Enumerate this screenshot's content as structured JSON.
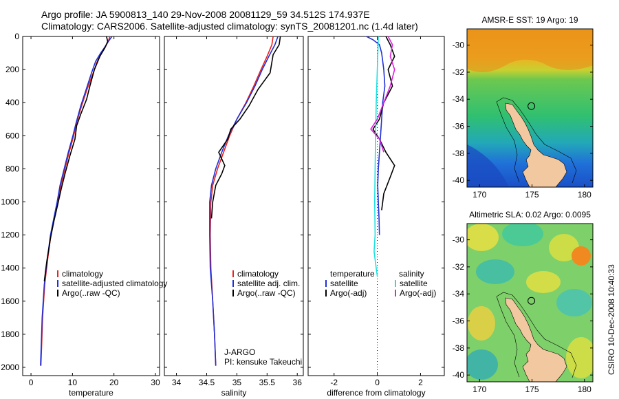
{
  "header": {
    "line1": "Argo profile: JA 5900813_140 29-Nov-2008 20081129_59 34.512S 174.937E",
    "line2": "Climatology: CARS2006. Satellite-adjusted climatology: synTS_20081201.nc (1.4d later)"
  },
  "footer": {
    "credit": "CSIRO 10-Dec-2008 10:40:33"
  },
  "colors": {
    "climatology": "#e8231d",
    "satellite": "#1f2fd8",
    "argo": "#000000",
    "sat_salinity": "#20e0e0",
    "argo_salinity": "#dd22dd"
  },
  "chart_data": [
    {
      "type": "line",
      "xlabel": "temperature",
      "ylim": [
        2050,
        0
      ],
      "xlim": [
        -2,
        31
      ],
      "xticks": [
        0,
        10,
        20,
        30
      ],
      "yticks": [
        0,
        200,
        400,
        600,
        800,
        1000,
        1200,
        1400,
        1600,
        1800,
        2000
      ],
      "legend": {
        "position": "bottom-right",
        "entries": [
          "climatology",
          "satellite-adjusted climatology",
          "Argo(..raw -QC)"
        ]
      },
      "series": [
        {
          "name": "climatology",
          "color": "#e8231d",
          "x": [
            19.0,
            18.7,
            18.0,
            17.0,
            16.0,
            15.0,
            13.5,
            12.2,
            11.0,
            10.3,
            9.2,
            8.2,
            7.2,
            6.4,
            5.6,
            4.8,
            4.0,
            3.3,
            2.8,
            2.6,
            2.4
          ],
          "y": [
            0,
            25,
            60,
            100,
            150,
            220,
            320,
            420,
            520,
            600,
            700,
            800,
            900,
            1000,
            1100,
            1200,
            1350,
            1500,
            1700,
            1850,
            1990
          ]
        },
        {
          "name": "satellite-adjusted climatology",
          "color": "#1f2fd8",
          "x": [
            19.5,
            18.8,
            17.9,
            16.8,
            15.6,
            14.6,
            13.3,
            12.0,
            10.9,
            10.1,
            9.0,
            8.0,
            7.0,
            6.3,
            5.5,
            4.7,
            3.9,
            3.2,
            2.7,
            2.5,
            2.3
          ],
          "y": [
            0,
            25,
            60,
            100,
            150,
            220,
            320,
            420,
            520,
            600,
            700,
            800,
            900,
            1000,
            1100,
            1200,
            1350,
            1500,
            1700,
            1850,
            1990
          ]
        },
        {
          "name": "Argo(..raw -QC)",
          "color": "#000000",
          "x": [
            18.2,
            18.5,
            17.8,
            16.6,
            15.3,
            14.2,
            13.4,
            12.0,
            11.0,
            10.6,
            9.4,
            8.2,
            7.3,
            6.4,
            5.5,
            4.7,
            3.8,
            3.2
          ],
          "y": [
            0,
            30,
            70,
            120,
            200,
            300,
            380,
            470,
            540,
            620,
            720,
            830,
            920,
            1020,
            1120,
            1220,
            1360,
            1480
          ]
        }
      ]
    },
    {
      "type": "line",
      "xlabel": "salinity",
      "ylim": [
        2050,
        0
      ],
      "xlim": [
        33.8,
        36.1
      ],
      "xticks": [
        34,
        34.5,
        35,
        35.5,
        36
      ],
      "legend": {
        "position": "bottom-right",
        "entries": [
          "climatology",
          "satellite adj. clim.",
          "Argo(..raw -QC)"
        ]
      },
      "annotation": [
        "J-ARGO",
        "PI: kensuke Takeuchi"
      ],
      "series": [
        {
          "name": "climatology",
          "color": "#e8231d",
          "x": [
            35.6,
            35.58,
            35.5,
            35.4,
            35.28,
            35.15,
            35.0,
            34.88,
            34.78,
            34.68,
            34.6,
            34.57,
            34.56,
            34.57,
            34.6,
            34.63,
            34.65
          ],
          "y": [
            0,
            50,
            120,
            200,
            300,
            400,
            500,
            600,
            700,
            800,
            900,
            1000,
            1200,
            1400,
            1600,
            1800,
            1990
          ]
        },
        {
          "name": "satellite adj. clim.",
          "color": "#1f2fd8",
          "x": [
            35.68,
            35.63,
            35.53,
            35.42,
            35.3,
            35.16,
            35.0,
            34.86,
            34.75,
            34.65,
            34.58,
            34.55,
            34.55,
            34.56,
            34.6,
            34.63,
            34.65
          ],
          "y": [
            0,
            50,
            120,
            200,
            300,
            400,
            500,
            600,
            700,
            800,
            900,
            1000,
            1200,
            1400,
            1600,
            1800,
            1990
          ]
        },
        {
          "name": "Argo(..raw -QC)",
          "color": "#000000",
          "x": [
            35.72,
            35.7,
            35.6,
            35.55,
            35.35,
            35.2,
            35.05,
            34.9,
            34.85,
            34.7,
            34.8,
            34.75,
            34.65,
            34.6,
            34.58
          ],
          "y": [
            0,
            50,
            110,
            220,
            320,
            420,
            500,
            560,
            620,
            700,
            780,
            830,
            900,
            1000,
            1100
          ]
        }
      ]
    },
    {
      "type": "line",
      "xlabel": "difference from climatology",
      "ylim": [
        2050,
        0
      ],
      "xlim": [
        -3.2,
        3.1
      ],
      "xticks": [
        -2,
        0,
        2
      ],
      "legend": {
        "position": "bottom",
        "temperature_heading": "temperature",
        "salinity_heading": "salinity",
        "entries": [
          "satellite",
          "Argo(-adj)",
          "satellite",
          "Argo(-adj)"
        ]
      },
      "series": [
        {
          "name": "temperature satellite",
          "color": "#1f2fd8",
          "x": [
            -0.5,
            -0.2,
            0.1,
            0.2,
            0.3,
            0.35,
            0.25,
            0.2,
            0.15,
            0.1,
            0.05,
            0.02,
            0.05,
            0.08,
            0.1
          ],
          "y": [
            0,
            20,
            50,
            100,
            200,
            300,
            400,
            500,
            600,
            700,
            800,
            900,
            1000,
            1100,
            1200
          ]
        },
        {
          "name": "temperature Argo(-adj)",
          "color": "#000000",
          "x": [
            0.4,
            0.6,
            0.8,
            0.5,
            0.7,
            0.3,
            0.1,
            -0.2,
            0.1,
            0.4,
            0.8,
            0.6,
            0.3,
            0.2
          ],
          "y": [
            0,
            50,
            120,
            200,
            300,
            400,
            500,
            560,
            620,
            700,
            780,
            850,
            950,
            1050
          ]
        },
        {
          "name": "salinity satellite",
          "color": "#20e0e0",
          "x": [
            0.05,
            0.0,
            -0.05,
            -0.08,
            -0.1,
            -0.12,
            -0.1,
            -0.15,
            -0.05,
            0.0
          ],
          "y": [
            0,
            200,
            400,
            600,
            800,
            1000,
            1200,
            1300,
            1400,
            1450
          ]
        },
        {
          "name": "salinity Argo(-adj)",
          "color": "#dd22dd",
          "x": [
            0.5,
            0.7,
            0.6,
            0.8,
            0.6,
            0.3,
            0.0,
            -0.3,
            0.1,
            0.3
          ],
          "y": [
            0,
            50,
            120,
            200,
            300,
            400,
            500,
            560,
            620,
            700
          ]
        }
      ]
    },
    {
      "type": "heatmap",
      "title": "AMSR-E SST: 19 Argo: 19",
      "xlim": [
        168.8,
        180.8
      ],
      "ylim": [
        -40.5,
        -28.8
      ],
      "xticks": [
        170,
        175,
        180
      ],
      "yticks": [
        -30,
        -32,
        -34,
        -36,
        -38,
        -40
      ],
      "profile_location": [
        174.937,
        -34.512
      ]
    },
    {
      "type": "heatmap",
      "title": "Altimetric SLA: 0.02 Argo: 0.0095",
      "xlim": [
        168.8,
        180.8
      ],
      "ylim": [
        -40.5,
        -28.8
      ],
      "xticks": [
        170,
        175,
        180
      ],
      "yticks": [
        -30,
        -32,
        -34,
        -36,
        -38,
        -40
      ],
      "profile_location": [
        174.937,
        -34.512
      ]
    }
  ]
}
